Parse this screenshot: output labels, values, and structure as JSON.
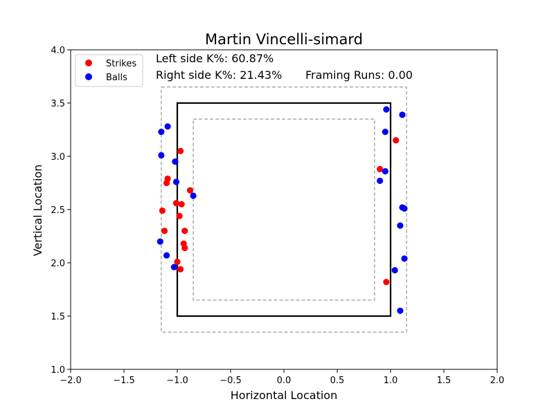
{
  "chart_data": {
    "type": "scatter",
    "title": "Martin Vincelli-simard",
    "xlabel": "Horizontal Location",
    "ylabel": "Vertical Location",
    "xlim": [
      -2.0,
      2.0
    ],
    "ylim": [
      1.0,
      4.0
    ],
    "xticks": [
      "−2.0",
      "−1.5",
      "−1.0",
      "−0.5",
      "0.0",
      "0.5",
      "1.0",
      "1.5",
      "2.0"
    ],
    "xtick_values": [
      -2.0,
      -1.5,
      -1.0,
      -0.5,
      0.0,
      0.5,
      1.0,
      1.5,
      2.0
    ],
    "yticks": [
      "1.0",
      "1.5",
      "2.0",
      "2.5",
      "3.0",
      "3.5",
      "4.0"
    ],
    "ytick_values": [
      1.0,
      1.5,
      2.0,
      2.5,
      3.0,
      3.5,
      4.0
    ],
    "grid": false,
    "legend_position": "top-left",
    "annotations": [
      "Left side K%: 60.87%",
      "Right side K%: 21.43%",
      "Framing Runs: 0.00"
    ],
    "strike_zone": {
      "x": [
        -1.0,
        1.0
      ],
      "y": [
        1.5,
        3.5
      ],
      "color": "#000000"
    },
    "outer_zone": {
      "x": [
        -1.15,
        1.15
      ],
      "y": [
        1.35,
        3.65
      ],
      "color": "#808080"
    },
    "inner_zone": {
      "x": [
        -0.85,
        0.85
      ],
      "y": [
        1.65,
        3.35
      ],
      "color": "#808080"
    },
    "series": [
      {
        "name": "Strikes",
        "color": "#ff0000",
        "points": [
          [
            -0.97,
            3.05
          ],
          [
            -1.09,
            2.79
          ],
          [
            -1.1,
            2.75
          ],
          [
            -0.88,
            2.68
          ],
          [
            -1.01,
            2.56
          ],
          [
            -0.96,
            2.55
          ],
          [
            -1.14,
            2.49
          ],
          [
            -0.98,
            2.44
          ],
          [
            -1.12,
            2.3
          ],
          [
            -0.93,
            2.3
          ],
          [
            -0.94,
            2.18
          ],
          [
            -0.93,
            2.14
          ],
          [
            -1.0,
            2.01
          ],
          [
            -0.97,
            1.94
          ],
          [
            1.05,
            3.15
          ],
          [
            0.9,
            2.88
          ],
          [
            0.96,
            1.82
          ]
        ]
      },
      {
        "name": "Balls",
        "color": "#0000ff",
        "points": [
          [
            -1.09,
            3.28
          ],
          [
            -1.15,
            3.23
          ],
          [
            -1.15,
            3.01
          ],
          [
            -1.02,
            2.95
          ],
          [
            -1.01,
            2.76
          ],
          [
            -0.85,
            2.63
          ],
          [
            -1.16,
            2.2
          ],
          [
            -1.1,
            2.07
          ],
          [
            -1.03,
            1.96
          ],
          [
            0.96,
            3.44
          ],
          [
            1.11,
            3.39
          ],
          [
            0.95,
            3.23
          ],
          [
            0.95,
            2.86
          ],
          [
            0.9,
            2.77
          ],
          [
            1.11,
            2.52
          ],
          [
            1.13,
            2.51
          ],
          [
            1.09,
            2.35
          ],
          [
            1.13,
            2.04
          ],
          [
            1.04,
            1.93
          ],
          [
            1.09,
            1.55
          ]
        ]
      }
    ]
  }
}
